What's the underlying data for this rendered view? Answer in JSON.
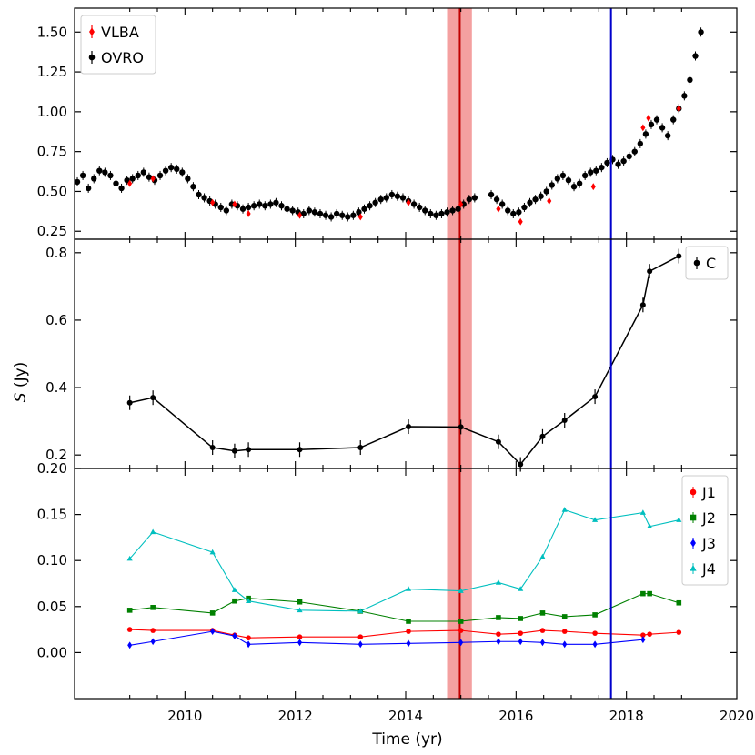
{
  "chart_data": {
    "type": "scatter",
    "xlabel": "Time (yr)",
    "ylabel": "S (Jy)",
    "xlim": [
      2008.0,
      2020.0
    ],
    "xticks": [
      2010,
      2012,
      2014,
      2016,
      2018,
      2020
    ],
    "shaded_band": {
      "from": 2014.75,
      "to": 2015.2,
      "center": 2014.98,
      "color": "#f08080"
    },
    "vertical_line": {
      "x": 2017.72,
      "color": "#0000cc"
    },
    "panels": [
      {
        "name": "top",
        "ylim": [
          0.2,
          1.65
        ],
        "yticks": [
          "0.25",
          "0.50",
          "0.75",
          "1.00",
          "1.25",
          "1.50"
        ],
        "legend": [
          {
            "label": "VLBA",
            "color": "#ff0000",
            "marker": "diamond"
          },
          {
            "label": "OVRO",
            "color": "#000000",
            "marker": "circle"
          }
        ],
        "series": [
          {
            "name": "OVRO",
            "color": "#000000",
            "x": [
              2008.05,
              2008.15,
              2008.25,
              2008.35,
              2008.45,
              2008.55,
              2008.65,
              2008.75,
              2008.85,
              2008.95,
              2009.05,
              2009.15,
              2009.25,
              2009.35,
              2009.45,
              2009.55,
              2009.65,
              2009.75,
              2009.85,
              2009.95,
              2010.05,
              2010.15,
              2010.25,
              2010.35,
              2010.45,
              2010.55,
              2010.65,
              2010.75,
              2010.85,
              2010.95,
              2011.05,
              2011.15,
              2011.25,
              2011.35,
              2011.45,
              2011.55,
              2011.65,
              2011.75,
              2011.85,
              2011.95,
              2012.05,
              2012.15,
              2012.25,
              2012.35,
              2012.45,
              2012.55,
              2012.65,
              2012.75,
              2012.85,
              2012.95,
              2013.05,
              2013.15,
              2013.25,
              2013.35,
              2013.45,
              2013.55,
              2013.65,
              2013.75,
              2013.85,
              2013.95,
              2014.05,
              2014.15,
              2014.25,
              2014.35,
              2014.45,
              2014.55,
              2014.65,
              2014.75,
              2014.85,
              2014.95,
              2015.05,
              2015.15,
              2015.25,
              2015.55,
              2015.65,
              2015.75,
              2015.85,
              2015.95,
              2016.05,
              2016.15,
              2016.25,
              2016.35,
              2016.45,
              2016.55,
              2016.65,
              2016.75,
              2016.85,
              2016.95,
              2017.05,
              2017.15,
              2017.25,
              2017.35,
              2017.45,
              2017.55,
              2017.65,
              2017.75,
              2017.85,
              2017.95,
              2018.05,
              2018.15,
              2018.25,
              2018.35,
              2018.45,
              2018.55,
              2018.65,
              2018.75,
              2018.85,
              2018.95,
              2019.05,
              2019.15,
              2019.25,
              2019.35
            ],
            "y": [
              0.56,
              0.6,
              0.52,
              0.58,
              0.63,
              0.62,
              0.6,
              0.55,
              0.52,
              0.57,
              0.58,
              0.6,
              0.62,
              0.59,
              0.57,
              0.6,
              0.63,
              0.65,
              0.64,
              0.62,
              0.58,
              0.53,
              0.48,
              0.46,
              0.44,
              0.42,
              0.4,
              0.38,
              0.42,
              0.41,
              0.39,
              0.4,
              0.41,
              0.42,
              0.41,
              0.42,
              0.43,
              0.41,
              0.39,
              0.38,
              0.37,
              0.36,
              0.38,
              0.37,
              0.36,
              0.35,
              0.34,
              0.36,
              0.35,
              0.34,
              0.35,
              0.37,
              0.39,
              0.41,
              0.43,
              0.45,
              0.46,
              0.48,
              0.47,
              0.46,
              0.44,
              0.42,
              0.4,
              0.38,
              0.36,
              0.35,
              0.36,
              0.37,
              0.38,
              0.39,
              0.42,
              0.45,
              0.46,
              0.48,
              0.45,
              0.42,
              0.38,
              0.36,
              0.37,
              0.4,
              0.43,
              0.45,
              0.47,
              0.5,
              0.54,
              0.58,
              0.6,
              0.57,
              0.53,
              0.55,
              0.6,
              0.62,
              0.63,
              0.65,
              0.68,
              0.7,
              0.67,
              0.69,
              0.72,
              0.75,
              0.8,
              0.86,
              0.92,
              0.95,
              0.9,
              0.85,
              0.95,
              1.02,
              1.1,
              1.2,
              1.35,
              1.5
            ]
          },
          {
            "name": "VLBA",
            "color": "#ff0000",
            "x": [
              2009.0,
              2009.42,
              2010.5,
              2010.9,
              2011.15,
              2012.08,
              2013.18,
              2014.05,
              2015.0,
              2015.68,
              2016.08,
              2016.6,
              2017.4,
              2018.3,
              2018.4,
              2018.95
            ],
            "y": [
              0.55,
              0.58,
              0.43,
              0.42,
              0.36,
              0.35,
              0.34,
              0.43,
              0.42,
              0.39,
              0.31,
              0.44,
              0.53,
              0.9,
              0.96,
              1.02
            ]
          }
        ]
      },
      {
        "name": "middle",
        "ylim": [
          0.16,
          0.84
        ],
        "yticks": [
          "0.2",
          "0.4",
          "0.6",
          "0.8"
        ],
        "legend": [
          {
            "label": "C",
            "color": "#000000",
            "marker": "circle"
          }
        ],
        "series": [
          {
            "name": "C",
            "color": "#000000",
            "x": [
              2009.0,
              2009.42,
              2010.5,
              2010.9,
              2011.15,
              2012.08,
              2013.18,
              2014.05,
              2015.0,
              2015.68,
              2016.08,
              2016.48,
              2016.88,
              2017.43,
              2018.3,
              2018.42,
              2018.95
            ],
            "y": [
              0.355,
              0.37,
              0.222,
              0.212,
              0.216,
              0.216,
              0.222,
              0.284,
              0.283,
              0.239,
              0.172,
              0.255,
              0.303,
              0.373,
              0.645,
              0.745,
              0.79
            ]
          }
        ]
      },
      {
        "name": "bottom",
        "ylim": [
          -0.05,
          0.2
        ],
        "yticks": [
          "0.00",
          "0.05",
          "0.10",
          "0.15",
          "0.20"
        ],
        "legend": [
          {
            "label": "J1",
            "color": "#ff0000",
            "marker": "circle"
          },
          {
            "label": "J2",
            "color": "#008000",
            "marker": "square"
          },
          {
            "label": "J3",
            "color": "#0000ff",
            "marker": "diamond"
          },
          {
            "label": "J4",
            "color": "#00bfbf",
            "marker": "triangle"
          }
        ],
        "series": [
          {
            "name": "J1",
            "color": "#ff0000",
            "x": [
              2009.0,
              2009.42,
              2010.5,
              2010.9,
              2011.15,
              2012.08,
              2013.18,
              2014.05,
              2015.0,
              2015.68,
              2016.08,
              2016.48,
              2016.88,
              2017.43,
              2018.3,
              2018.42,
              2018.95
            ],
            "y": [
              0.025,
              0.024,
              0.024,
              0.019,
              0.016,
              0.017,
              0.017,
              0.023,
              0.024,
              0.02,
              0.021,
              0.024,
              0.023,
              0.021,
              0.019,
              0.02,
              0.022
            ]
          },
          {
            "name": "J2",
            "color": "#008000",
            "x": [
              2009.0,
              2009.42,
              2010.5,
              2010.9,
              2011.15,
              2012.08,
              2013.18,
              2014.05,
              2015.0,
              2015.68,
              2016.08,
              2016.48,
              2016.88,
              2017.43,
              2018.3,
              2018.42,
              2018.95
            ],
            "y": [
              0.046,
              0.049,
              0.043,
              0.056,
              0.059,
              0.055,
              0.045,
              0.034,
              0.034,
              0.038,
              0.037,
              0.043,
              0.039,
              0.041,
              0.064,
              0.064,
              0.054
            ]
          },
          {
            "name": "J3",
            "color": "#0000ff",
            "x": [
              2009.0,
              2009.42,
              2010.5,
              2010.9,
              2011.15,
              2012.08,
              2013.18,
              2014.05,
              2015.0,
              2015.68,
              2016.08,
              2016.48,
              2016.88,
              2017.43,
              2018.3
            ],
            "y": [
              0.008,
              0.012,
              0.023,
              0.018,
              0.009,
              0.011,
              0.009,
              0.01,
              0.011,
              0.012,
              0.012,
              0.011,
              0.009,
              0.009,
              0.014
            ]
          },
          {
            "name": "J4",
            "color": "#00bfbf",
            "x": [
              2009.0,
              2009.42,
              2010.5,
              2010.9,
              2011.15,
              2012.08,
              2013.18,
              2014.05,
              2015.0,
              2015.68,
              2016.08,
              2016.48,
              2016.88,
              2017.43,
              2018.3,
              2018.42,
              2018.95
            ],
            "y": [
              0.102,
              0.131,
              0.109,
              0.068,
              0.056,
              0.046,
              0.045,
              0.069,
              0.067,
              0.076,
              0.069,
              0.104,
              0.155,
              0.144,
              0.152,
              0.137,
              0.144
            ]
          }
        ]
      }
    ]
  }
}
